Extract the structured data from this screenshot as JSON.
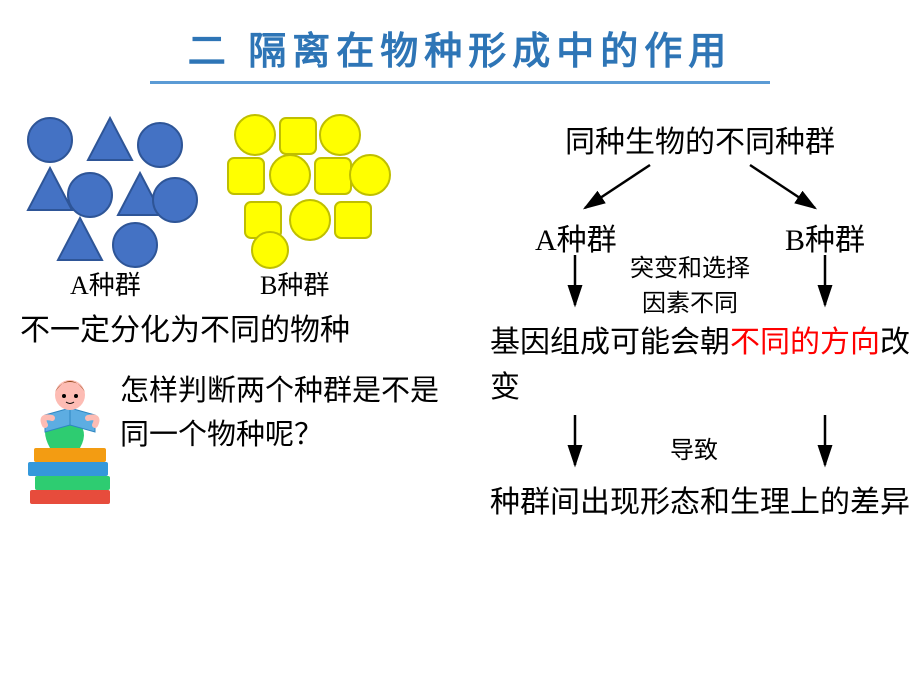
{
  "title": {
    "text": "二  隔离在物种形成中的作用",
    "color": "#2e75b6",
    "line_color": "#5b9bd5",
    "title_width": 620
  },
  "shapes": {
    "a": {
      "fill": "#4472c4",
      "stroke": "#2e5597",
      "label": "A种群"
    },
    "b": {
      "fill": "#ffff00",
      "stroke": "#bfbf00",
      "label": "B种群"
    }
  },
  "left": {
    "desc": "不一定分化为不同的物种",
    "question": "怎样判断两个种群是不是同一个物种呢？"
  },
  "right": {
    "top": "同种生物的不同种群",
    "a_label": "A种群",
    "b_label": "B种群",
    "mut_line1": "突变和选择",
    "mut_line2": "因素不同",
    "gene_prefix": "基因组成可能会朝",
    "gene_red": "不同的方向",
    "gene_suffix": "改变",
    "cause": "导致",
    "result": "种群间出现形态和生理上的差异",
    "red_color": "#ff0000"
  },
  "books": {
    "red": "#e74c3c",
    "blue": "#3498db",
    "green": "#2ecc71",
    "orange": "#f39c12",
    "skin": "#fdbcb4",
    "hair": "#8b4513",
    "book_open": "#5dade2"
  }
}
